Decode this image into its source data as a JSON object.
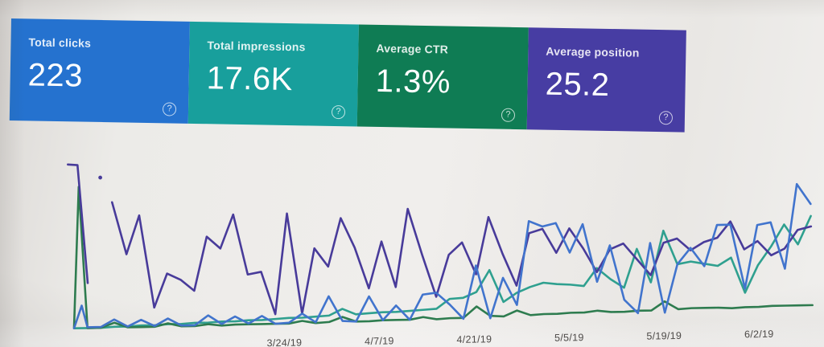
{
  "icons": {
    "help": "?"
  },
  "cards": [
    {
      "label": "Total clicks",
      "value": "223",
      "bg": "#2173d4"
    },
    {
      "label": "Total impressions",
      "value": "17.6K",
      "bg": "#12a19d"
    },
    {
      "label": "Average CTR",
      "value": "1.3%",
      "bg": "#0b7d53"
    },
    {
      "label": "Average position",
      "value": "25.2",
      "bg": "#473ca8"
    }
  ],
  "chart_data": {
    "type": "line",
    "title": "",
    "xlabel": "",
    "ylabel": "",
    "y_axis": "unlabeled (no numeric scale shown in screenshot)",
    "units_note": "series values are estimated relative heights (px above chart baseline) read from the pixels; chart displays daily date series at ~16.7px per point",
    "x_axis": {
      "tick_labels": [
        {
          "text": "3/24/19",
          "pos": 0.284
        },
        {
          "text": "4/7/19",
          "pos": 0.413
        },
        {
          "text": "4/21/19",
          "pos": 0.541
        },
        {
          "text": "5/5/19",
          "pos": 0.67
        },
        {
          "text": "5/19/19",
          "pos": 0.798
        },
        {
          "text": "6/2/19",
          "pos": 0.927
        }
      ]
    },
    "legend": "none (series colors match the four metric cards)",
    "series": [
      {
        "name": "Impressions",
        "color": "#2aa18f",
        "start_index": 0,
        "heights": [
          2,
          2,
          2,
          3,
          3,
          4,
          4,
          5,
          5,
          6,
          6,
          7,
          7,
          8,
          8,
          9,
          10,
          10,
          11,
          12,
          20,
          13,
          14,
          15,
          15,
          16,
          17,
          18,
          30,
          31,
          38,
          65,
          25,
          36,
          43,
          48,
          46,
          45,
          43,
          65,
          51,
          40,
          88,
          46,
          110,
          68,
          71,
          68,
          65,
          75,
          31,
          65,
          88,
          115,
          90,
          125
        ]
      },
      {
        "name": "CTR",
        "color": "#2b7d4e",
        "start_index": 1,
        "intro": [
          [
            92,
            3
          ],
          [
            101,
            178
          ]
        ],
        "heights": [
          2,
          2,
          8,
          2,
          2,
          2,
          6,
          2,
          2,
          4,
          2,
          3,
          3,
          3,
          3,
          3,
          6,
          3,
          4,
          10,
          4,
          4,
          5,
          5,
          5,
          8,
          5,
          6,
          6,
          20,
          8,
          7,
          14,
          8,
          9,
          9,
          10,
          10,
          12,
          10,
          10,
          11,
          11,
          22,
          12,
          13,
          13,
          13,
          12,
          13,
          13,
          14,
          14,
          14,
          14
        ]
      },
      {
        "name": "Position",
        "color": "#483a9e",
        "start_index": 3,
        "intro": [
          [
            88,
            206
          ],
          [
            100,
            205
          ],
          [
            110,
            58
          ]
        ],
        "gap_dot": [
          128,
          189
        ],
        "heights": [
          158,
          93,
          141,
          26,
          68,
          60,
          46,
          113,
          98,
          140,
          65,
          68,
          15,
          140,
          15,
          96,
          73,
          133,
          96,
          45,
          103,
          46,
          143,
          86,
          33,
          85,
          100,
          60,
          131,
          85,
          45,
          110,
          115,
          85,
          115,
          90,
          60,
          88,
          95,
          75,
          55,
          95,
          100,
          85,
          95,
          100,
          120,
          85,
          95,
          77,
          85,
          108,
          112
        ]
      },
      {
        "name": "Clicks",
        "color": "#3f74d2",
        "start_index": 1,
        "intro": [
          [
            92,
            2
          ],
          [
            102,
            30
          ]
        ],
        "heights": [
          3,
          3,
          12,
          3,
          11,
          3,
          12,
          3,
          3,
          15,
          4,
          13,
          4,
          13,
          3,
          4,
          15,
          4,
          36,
          5,
          4,
          35,
          5,
          23,
          5,
          36,
          38,
          23,
          5,
          71,
          5,
          55,
          21,
          125,
          118,
          122,
          85,
          120,
          48,
          93,
          25,
          8,
          95,
          8,
          68,
          88,
          65,
          116,
          116,
          36,
          115,
          118,
          60,
          165,
          140
        ]
      }
    ]
  }
}
